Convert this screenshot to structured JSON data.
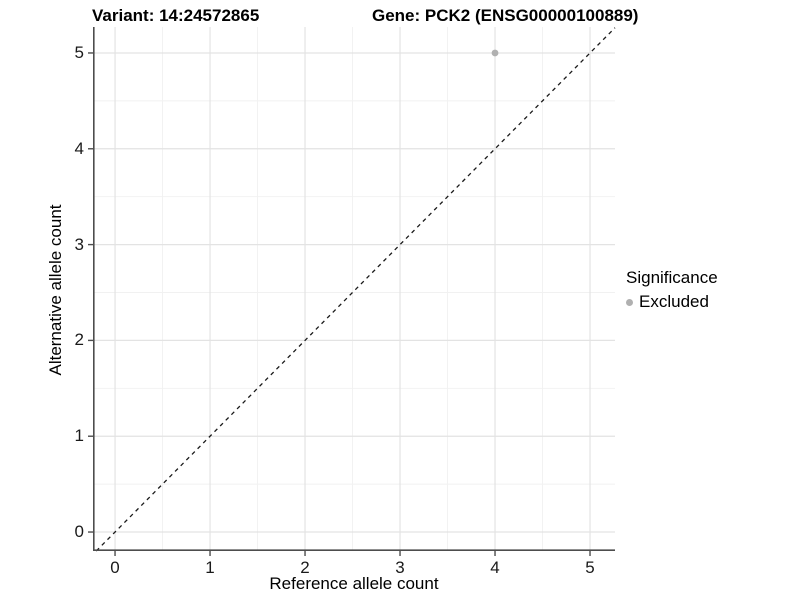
{
  "figure": {
    "title_variant": "Variant: 14:24572865",
    "title_gene": "Gene: PCK2 (ENSG00000100889)"
  },
  "axes": {
    "x_title": "Reference allele count",
    "y_title": "Alternative allele count",
    "x_tick_labels": [
      "0",
      "1",
      "2",
      "3",
      "4",
      "5"
    ],
    "y_tick_labels": [
      "0",
      "1",
      "2",
      "3",
      "4",
      "5"
    ]
  },
  "legend": {
    "title": "Significance",
    "entries": [
      {
        "label": "Excluded",
        "color": "#b0b0b0"
      }
    ]
  },
  "colors": {
    "grid_major": "#e3e3e3",
    "grid_minor": "#f1f1f1",
    "axis_line": "#4d4d4d",
    "tick_mark": "#4d4d4d",
    "reference_line": "#1a1a1a",
    "point_excluded": "#b0b0b0"
  },
  "chart_data": {
    "type": "scatter",
    "title": "Variant: 14:24572865   Gene: PCK2 (ENSG00000100889)",
    "xlabel": "Reference allele count",
    "ylabel": "Alternative allele count",
    "xlim": [
      -0.232,
      5.263
    ],
    "ylim": [
      -0.198,
      5.271
    ],
    "x_ticks": [
      0,
      1,
      2,
      3,
      4,
      5
    ],
    "y_ticks": [
      0,
      1,
      2,
      3,
      4,
      5
    ],
    "grid": "major and minor gridlines on, light gray",
    "legend_position": "right",
    "reference_line": {
      "type": "identity y=x",
      "style": "dashed",
      "color": "#1a1a1a"
    },
    "series": [
      {
        "name": "Excluded",
        "color": "#b0b0b0",
        "points": [
          {
            "x": 4,
            "y": 5
          }
        ]
      }
    ]
  }
}
